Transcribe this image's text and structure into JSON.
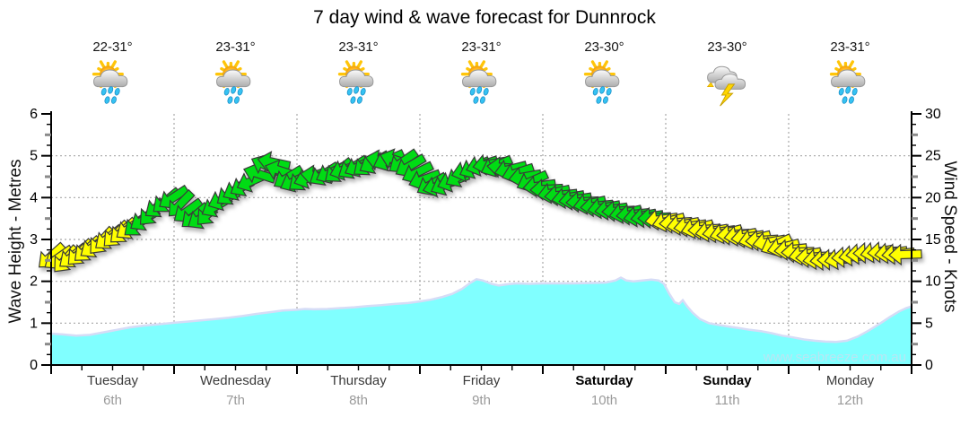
{
  "title": "7 day wind & wave forecast for Dunnrock",
  "watermark": "www.seabreeze.com.au",
  "axes": {
    "left": {
      "label": "Wave Height - Metres",
      "ticks": [
        0,
        1,
        2,
        3,
        4,
        5,
        6
      ],
      "max": 6
    },
    "right": {
      "label": "Wind Speed - Knots",
      "ticks": [
        0,
        5,
        10,
        15,
        20,
        25,
        30
      ],
      "max": 30
    }
  },
  "days": [
    {
      "name": "Tuesday",
      "date": "6th",
      "temp": "22-31°",
      "icon": "sun-cloud-rain",
      "weekend": false
    },
    {
      "name": "Wednesday",
      "date": "7th",
      "temp": "23-31°",
      "icon": "sun-cloud-rain",
      "weekend": false
    },
    {
      "name": "Thursday",
      "date": "8th",
      "temp": "23-31°",
      "icon": "sun-cloud-rain",
      "weekend": false
    },
    {
      "name": "Friday",
      "date": "9th",
      "temp": "23-31°",
      "icon": "sun-cloud-rain",
      "weekend": false
    },
    {
      "name": "Saturday",
      "date": "10th",
      "temp": "23-30°",
      "icon": "sun-cloud-rain",
      "weekend": true
    },
    {
      "name": "Sunday",
      "date": "11th",
      "temp": "23-30°",
      "icon": "storm",
      "weekend": true
    },
    {
      "name": "Monday",
      "date": "12th",
      "temp": "23-31°",
      "icon": "sun-cloud-rain",
      "weekend": false
    }
  ],
  "colors": {
    "wave_fill": "#80FFFF",
    "wave_edge": "#D6DCF6",
    "arrow_yellow": "#FFFF00",
    "arrow_green": "#00DC14",
    "arrow_outline": "#3a3a3a",
    "grid": "#999999",
    "axis": "#000000",
    "watermark_text": "#b9e6f3"
  },
  "chart_data": {
    "type": "area+wind-arrows",
    "title": "7 day wind & wave forecast for Dunnrock",
    "x_axis": {
      "unit": "day",
      "categories": [
        "Tuesday 6th",
        "Wednesday 7th",
        "Thursday 8th",
        "Friday 9th",
        "Saturday 10th",
        "Sunday 11th",
        "Monday 12th"
      ]
    },
    "left_axis": {
      "label": "Wave Height - Metres",
      "range": [
        0,
        6
      ],
      "gridlines": [
        1,
        2,
        3,
        4,
        5
      ]
    },
    "right_axis": {
      "label": "Wind Speed - Knots",
      "range": [
        0,
        30
      ]
    },
    "wave_height_m": [
      [
        57,
        0.75
      ],
      [
        70,
        0.73
      ],
      [
        85,
        0.7
      ],
      [
        100,
        0.72
      ],
      [
        115,
        0.78
      ],
      [
        130,
        0.84
      ],
      [
        145,
        0.9
      ],
      [
        160,
        0.94
      ],
      [
        175,
        0.97
      ],
      [
        194,
        1.01
      ],
      [
        210,
        1.04
      ],
      [
        225,
        1.07
      ],
      [
        240,
        1.1
      ],
      [
        255,
        1.13
      ],
      [
        270,
        1.17
      ],
      [
        285,
        1.22
      ],
      [
        300,
        1.26
      ],
      [
        315,
        1.3
      ],
      [
        331,
        1.32
      ],
      [
        340,
        1.34
      ],
      [
        350,
        1.33
      ],
      [
        365,
        1.34
      ],
      [
        380,
        1.36
      ],
      [
        395,
        1.38
      ],
      [
        410,
        1.41
      ],
      [
        425,
        1.43
      ],
      [
        440,
        1.46
      ],
      [
        455,
        1.48
      ],
      [
        468,
        1.52
      ],
      [
        480,
        1.56
      ],
      [
        492,
        1.62
      ],
      [
        504,
        1.7
      ],
      [
        515,
        1.82
      ],
      [
        524,
        1.96
      ],
      [
        531,
        2.05
      ],
      [
        538,
        2.02
      ],
      [
        548,
        1.94
      ],
      [
        556,
        1.9
      ],
      [
        566,
        1.93
      ],
      [
        576,
        1.95
      ],
      [
        590,
        1.94
      ],
      [
        605,
        1.95
      ],
      [
        620,
        1.95
      ],
      [
        640,
        1.95
      ],
      [
        660,
        1.96
      ],
      [
        675,
        1.97
      ],
      [
        686,
        2.02
      ],
      [
        692,
        2.09
      ],
      [
        698,
        2.02
      ],
      [
        706,
        2.0
      ],
      [
        716,
        2.02
      ],
      [
        726,
        2.04
      ],
      [
        734,
        2.02
      ],
      [
        740,
        1.94
      ],
      [
        746,
        1.7
      ],
      [
        752,
        1.5
      ],
      [
        757,
        1.46
      ],
      [
        761,
        1.55
      ],
      [
        766,
        1.4
      ],
      [
        772,
        1.25
      ],
      [
        780,
        1.1
      ],
      [
        790,
        1.0
      ],
      [
        800,
        0.96
      ],
      [
        812,
        0.92
      ],
      [
        824,
        0.88
      ],
      [
        836,
        0.84
      ],
      [
        848,
        0.81
      ],
      [
        860,
        0.76
      ],
      [
        872,
        0.7
      ],
      [
        884,
        0.66
      ],
      [
        896,
        0.61
      ],
      [
        908,
        0.58
      ],
      [
        920,
        0.56
      ],
      [
        932,
        0.55
      ],
      [
        944,
        0.58
      ],
      [
        956,
        0.68
      ],
      [
        968,
        0.82
      ],
      [
        980,
        0.98
      ],
      [
        992,
        1.15
      ],
      [
        1002,
        1.28
      ],
      [
        1010,
        1.36
      ],
      [
        1016,
        1.4
      ]
    ],
    "wind_arrows": [
      [
        57,
        13.0,
        -42,
        "y"
      ],
      [
        65,
        12.8,
        -35,
        "y"
      ],
      [
        73,
        12.6,
        -48,
        "y"
      ],
      [
        81,
        13.0,
        -38,
        "y"
      ],
      [
        89,
        13.4,
        -45,
        "y"
      ],
      [
        97,
        13.8,
        -42,
        "y"
      ],
      [
        105,
        14.2,
        -35,
        "y"
      ],
      [
        113,
        14.8,
        -48,
        "y"
      ],
      [
        121,
        15.2,
        -38,
        "y"
      ],
      [
        129,
        15.6,
        -45,
        "y"
      ],
      [
        137,
        16.0,
        -42,
        "y"
      ],
      [
        145,
        16.4,
        -35,
        "y"
      ],
      [
        153,
        16.8,
        -40,
        "g"
      ],
      [
        161,
        17.4,
        -33,
        "g"
      ],
      [
        169,
        18.2,
        -46,
        "g"
      ],
      [
        177,
        19.0,
        -36,
        "g"
      ],
      [
        185,
        19.6,
        -40,
        "g"
      ],
      [
        193,
        20.0,
        -33,
        "g"
      ],
      [
        201,
        19.2,
        -46,
        "g"
      ],
      [
        209,
        18.4,
        -36,
        "g"
      ],
      [
        217,
        17.8,
        -40,
        "g"
      ],
      [
        225,
        17.6,
        -33,
        "g"
      ],
      [
        233,
        18.2,
        -46,
        "g"
      ],
      [
        241,
        19.0,
        -30,
        "g"
      ],
      [
        249,
        19.8,
        -24,
        "g"
      ],
      [
        257,
        20.5,
        -36,
        "g"
      ],
      [
        265,
        21.0,
        -28,
        "g"
      ],
      [
        273,
        21.5,
        -30,
        "g"
      ],
      [
        281,
        22.0,
        -24,
        "g"
      ],
      [
        289,
        22.8,
        18,
        "g"
      ],
      [
        297,
        23.8,
        25,
        "g"
      ],
      [
        305,
        24.2,
        12,
        "g"
      ],
      [
        313,
        23.2,
        18,
        "g"
      ],
      [
        321,
        22.4,
        -32,
        "g"
      ],
      [
        329,
        22.0,
        -26,
        "g"
      ],
      [
        337,
        22.2,
        -38,
        "g"
      ],
      [
        345,
        22.4,
        -20,
        "g"
      ],
      [
        353,
        22.6,
        8,
        "g"
      ],
      [
        361,
        22.8,
        -32,
        "g"
      ],
      [
        369,
        23.0,
        -26,
        "g"
      ],
      [
        377,
        23.2,
        -38,
        "g"
      ],
      [
        385,
        23.4,
        -20,
        "g"
      ],
      [
        393,
        23.6,
        -32,
        "g"
      ],
      [
        401,
        23.8,
        -26,
        "g"
      ],
      [
        409,
        24.0,
        -38,
        "g"
      ],
      [
        417,
        24.2,
        -30,
        "g"
      ],
      [
        425,
        24.4,
        12,
        "g"
      ],
      [
        433,
        24.5,
        -24,
        "g"
      ],
      [
        441,
        24.5,
        18,
        "g"
      ],
      [
        449,
        24.3,
        -35,
        "g"
      ],
      [
        457,
        23.8,
        -30,
        "g"
      ],
      [
        465,
        23.0,
        -26,
        "g"
      ],
      [
        473,
        22.2,
        -20,
        "g"
      ],
      [
        481,
        21.6,
        -30,
        "g"
      ],
      [
        489,
        21.4,
        -16,
        "g"
      ],
      [
        497,
        21.6,
        -26,
        "g"
      ],
      [
        505,
        22.0,
        -20,
        "g"
      ],
      [
        513,
        22.6,
        -30,
        "g"
      ],
      [
        521,
        23.2,
        -16,
        "g"
      ],
      [
        529,
        23.6,
        -26,
        "g"
      ],
      [
        537,
        23.9,
        -18,
        "g"
      ],
      [
        545,
        24.0,
        -10,
        "g"
      ],
      [
        553,
        23.8,
        -24,
        "g"
      ],
      [
        561,
        23.6,
        5,
        "g"
      ],
      [
        569,
        23.4,
        -14,
        "g"
      ],
      [
        577,
        23.0,
        -18,
        "g"
      ],
      [
        585,
        22.5,
        -10,
        "g"
      ],
      [
        593,
        22.0,
        -24,
        "g"
      ],
      [
        601,
        21.4,
        -8,
        "g"
      ],
      [
        609,
        21.0,
        -3,
        "g"
      ],
      [
        617,
        20.6,
        -12,
        "g"
      ],
      [
        625,
        20.3,
        -6,
        "g"
      ],
      [
        633,
        20.0,
        -10,
        "g"
      ],
      [
        641,
        19.8,
        -8,
        "g"
      ],
      [
        649,
        19.5,
        -3,
        "g"
      ],
      [
        657,
        19.3,
        -12,
        "g"
      ],
      [
        665,
        19.0,
        -6,
        "g"
      ],
      [
        673,
        18.8,
        -10,
        "g"
      ],
      [
        681,
        18.6,
        -8,
        "g"
      ],
      [
        689,
        18.4,
        -3,
        "g"
      ],
      [
        697,
        18.2,
        -12,
        "g"
      ],
      [
        705,
        18.0,
        -6,
        "g"
      ],
      [
        713,
        17.8,
        -10,
        "g"
      ],
      [
        721,
        17.7,
        -8,
        "g"
      ],
      [
        729,
        17.6,
        -3,
        "g"
      ],
      [
        737,
        17.4,
        -8,
        "y"
      ],
      [
        745,
        17.2,
        -14,
        "y"
      ],
      [
        753,
        17.0,
        -4,
        "y"
      ],
      [
        761,
        16.8,
        -10,
        "y"
      ],
      [
        769,
        16.6,
        -8,
        "y"
      ],
      [
        777,
        16.4,
        -14,
        "y"
      ],
      [
        785,
        16.2,
        -4,
        "y"
      ],
      [
        793,
        16.0,
        -10,
        "y"
      ],
      [
        801,
        15.9,
        -8,
        "y"
      ],
      [
        809,
        15.8,
        -14,
        "y"
      ],
      [
        817,
        15.6,
        -4,
        "y"
      ],
      [
        825,
        15.5,
        -10,
        "y"
      ],
      [
        833,
        15.3,
        -8,
        "y"
      ],
      [
        841,
        15.1,
        -14,
        "y"
      ],
      [
        849,
        14.9,
        -4,
        "y"
      ],
      [
        857,
        14.7,
        -10,
        "y"
      ],
      [
        865,
        14.4,
        -25,
        "y"
      ],
      [
        873,
        14.1,
        -14,
        "y"
      ],
      [
        881,
        13.8,
        -6,
        "y"
      ],
      [
        889,
        13.5,
        -2,
        "y"
      ],
      [
        897,
        13.2,
        -10,
        "y"
      ],
      [
        905,
        12.9,
        -4,
        "y"
      ],
      [
        913,
        12.7,
        -8,
        "y"
      ],
      [
        921,
        12.6,
        -6,
        "y"
      ],
      [
        929,
        12.6,
        -2,
        "y"
      ],
      [
        937,
        12.7,
        -10,
        "y"
      ],
      [
        945,
        12.9,
        -4,
        "y"
      ],
      [
        953,
        13.1,
        -8,
        "y"
      ],
      [
        961,
        13.3,
        -6,
        "y"
      ],
      [
        969,
        13.4,
        -2,
        "y"
      ],
      [
        977,
        13.5,
        -10,
        "y"
      ],
      [
        985,
        13.5,
        -4,
        "y"
      ],
      [
        993,
        13.4,
        -8,
        "y"
      ],
      [
        1001,
        13.3,
        -6,
        "y"
      ],
      [
        1009,
        13.2,
        -2,
        "y"
      ]
    ]
  }
}
